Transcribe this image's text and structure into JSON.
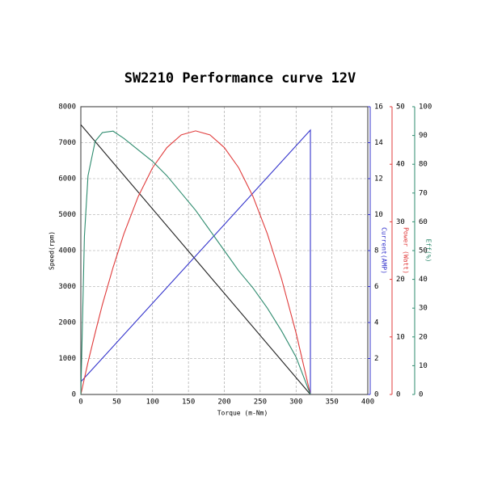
{
  "chart_data": {
    "type": "line",
    "title": "SW2210 Performance curve   12V",
    "xlabel": "Torque (m-Nm)",
    "ylabel": "Speed(rpm)",
    "xlim": [
      0,
      400
    ],
    "xticks": [
      0,
      50,
      100,
      150,
      200,
      250,
      300,
      350,
      400
    ],
    "ylim": [
      0,
      8000
    ],
    "yticks": [
      0,
      1000,
      2000,
      3000,
      4000,
      5000,
      6000,
      7000,
      8000
    ],
    "grid": true,
    "right_axes": [
      {
        "label": "Current(AMP)",
        "color": "#3333cc",
        "lim": [
          0,
          16
        ],
        "ticks": [
          0,
          2,
          4,
          6,
          8,
          10,
          12,
          14,
          16
        ]
      },
      {
        "label": "Power (Watt)",
        "color": "#e03c3c",
        "lim": [
          0,
          50
        ],
        "ticks": [
          0,
          10,
          20,
          30,
          40,
          50
        ]
      },
      {
        "label": "Eff(%)",
        "color": "#2e8b6e",
        "lim": [
          0,
          100
        ],
        "ticks": [
          0,
          10,
          20,
          30,
          40,
          50,
          60,
          70,
          80,
          90,
          100
        ]
      }
    ],
    "series": [
      {
        "name": "Speed",
        "color": "#222222",
        "x": [
          0,
          320
        ],
        "values": [
          7500,
          0
        ]
      },
      {
        "name": "Current",
        "color": "#3333cc",
        "axis": 0,
        "x": [
          0,
          320,
          320
        ],
        "values": [
          0.7,
          14.7,
          0
        ]
      },
      {
        "name": "Power",
        "color": "#e03c3c",
        "axis": 1,
        "x": [
          0,
          5,
          10,
          20,
          30,
          45,
          60,
          80,
          100,
          120,
          140,
          160,
          180,
          200,
          220,
          240,
          260,
          280,
          300,
          320
        ],
        "values": [
          0,
          2.8,
          5.6,
          10.7,
          15.6,
          22.1,
          27.9,
          34.4,
          39.4,
          42.9,
          45.1,
          45.8,
          45.1,
          42.9,
          39.4,
          34.4,
          27.9,
          20.0,
          10.7,
          0
        ]
      },
      {
        "name": "Eff",
        "color": "#2e8b6e",
        "axis": 2,
        "x": [
          0,
          5,
          10,
          20,
          30,
          45,
          60,
          80,
          100,
          120,
          140,
          160,
          180,
          200,
          220,
          240,
          260,
          280,
          300,
          320
        ],
        "values": [
          0,
          55,
          76,
          88,
          91,
          91.5,
          89,
          85,
          81,
          76,
          70,
          64,
          57,
          50,
          43,
          37,
          30,
          22,
          13,
          0
        ]
      }
    ]
  }
}
